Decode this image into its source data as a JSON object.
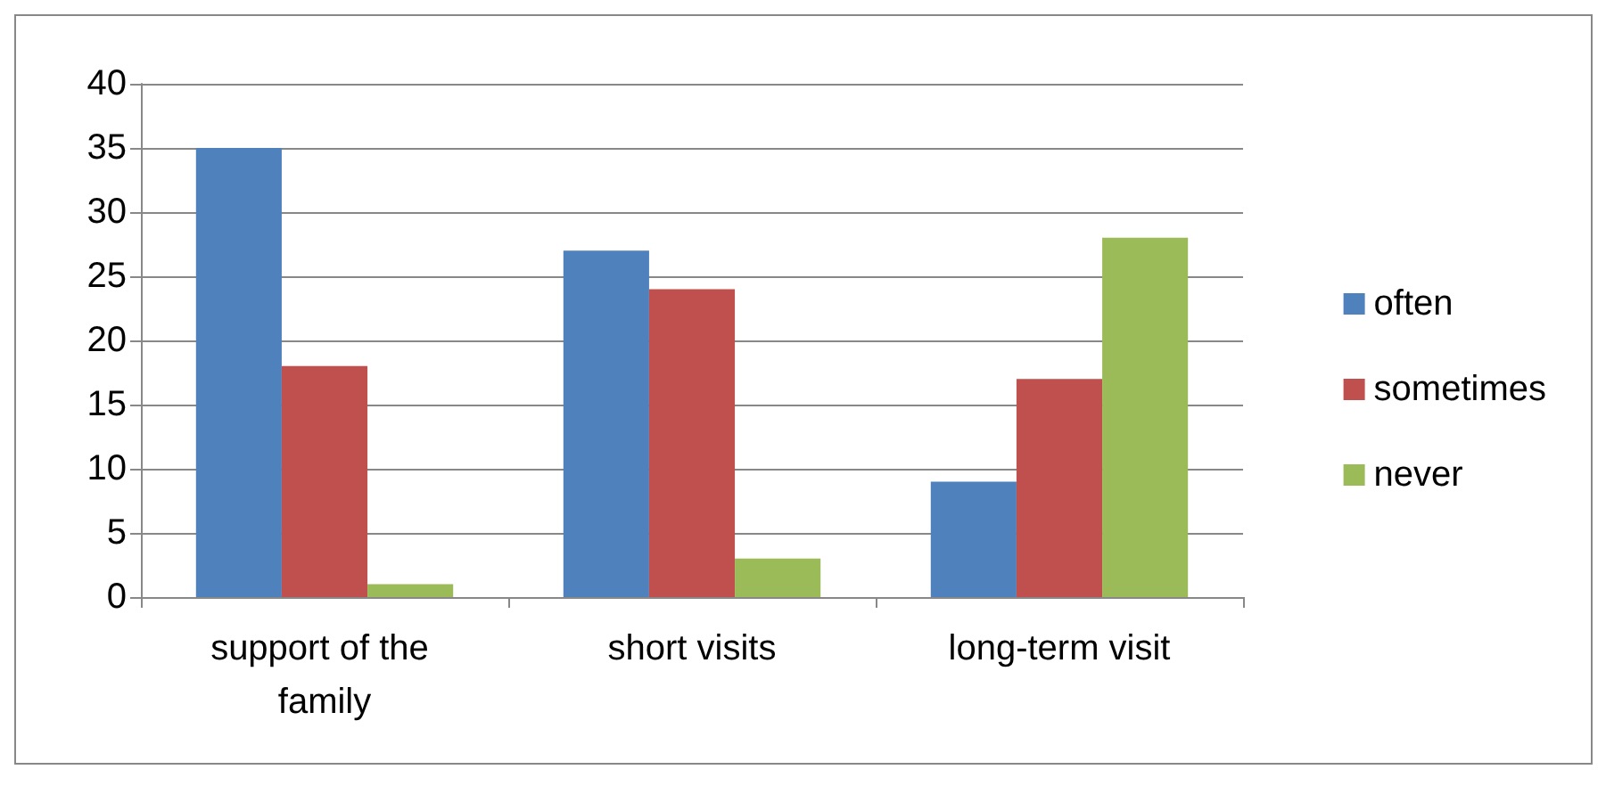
{
  "chart_data": {
    "type": "bar",
    "categories": [
      "support of the family",
      "short visits",
      "long-term visit"
    ],
    "series": [
      {
        "name": "often",
        "color": "#4f81bd",
        "values": [
          35,
          27,
          9
        ]
      },
      {
        "name": "sometimes",
        "color": "#c0504d",
        "values": [
          18,
          24,
          17
        ]
      },
      {
        "name": "never",
        "color": "#9bbb59",
        "values": [
          1,
          3,
          28
        ]
      }
    ],
    "ylim": [
      0,
      40
    ],
    "yticks": [
      0,
      5,
      10,
      15,
      20,
      25,
      30,
      35,
      40
    ],
    "grid": "y",
    "legend": "right"
  }
}
